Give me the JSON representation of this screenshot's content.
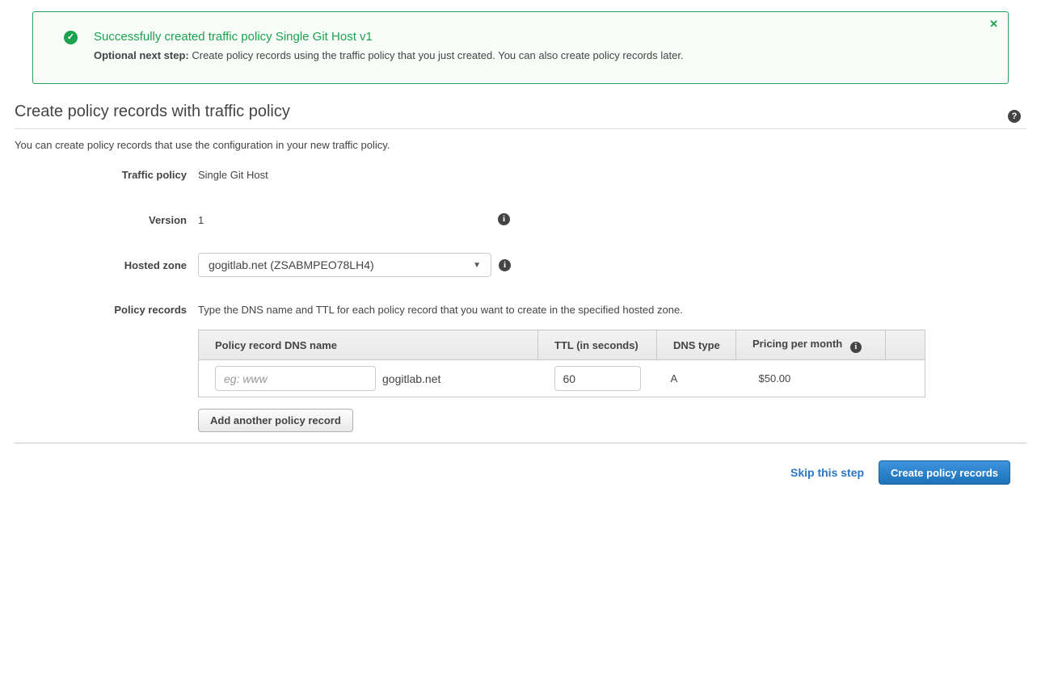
{
  "icons": {
    "check": "✓",
    "close": "✕",
    "info": "i",
    "help": "?",
    "caret": "▼"
  },
  "banner": {
    "title": "Successfully created traffic policy Single Git Host v1",
    "next_step_label": "Optional next step:",
    "next_step_text": " Create policy records using the traffic policy that you just created. You can also create policy records later."
  },
  "page": {
    "title": "Create policy records with traffic policy",
    "intro": "You can create policy records that use the configuration in your new traffic policy."
  },
  "form": {
    "traffic_policy": {
      "label": "Traffic policy",
      "value": "Single Git Host"
    },
    "version": {
      "label": "Version",
      "value": "1"
    },
    "hosted_zone": {
      "label": "Hosted zone",
      "value": "gogitlab.net (ZSABMPEO78LH4)"
    },
    "policy_records": {
      "label": "Policy records",
      "description": "Type the DNS name and TTL for each policy record that you want to create in the specified hosted zone."
    }
  },
  "table": {
    "headers": {
      "dns_name": "Policy record DNS name",
      "ttl": "TTL (in seconds)",
      "dns_type": "DNS type",
      "pricing": "Pricing per month"
    },
    "row": {
      "dns_placeholder": "eg: www",
      "domain_suffix": "gogitlab.net",
      "ttl_value": "60",
      "dns_type": "A",
      "pricing": "$50.00"
    }
  },
  "buttons": {
    "add_record": "Add another policy record",
    "skip": "Skip this step",
    "create": "Create policy records"
  },
  "colors": {
    "success_green": "#1ca24f",
    "banner_bg": "#f8fdf9",
    "link_blue": "#2b77c0",
    "button_blue_top": "#3e94dd",
    "button_blue_bottom": "#1d72ba",
    "text": "#444444"
  }
}
